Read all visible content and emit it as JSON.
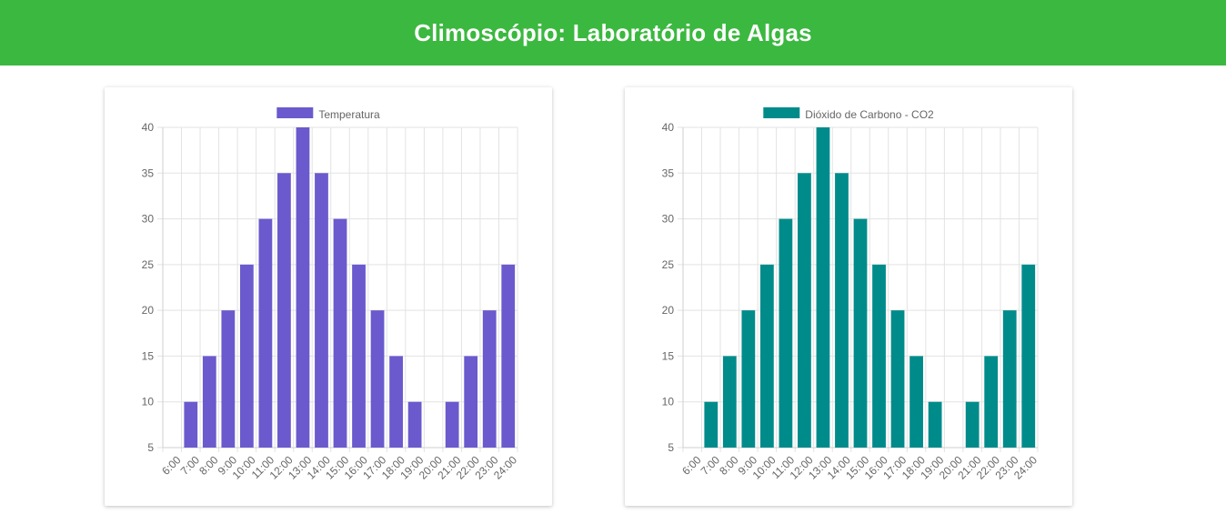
{
  "header": {
    "title": "Climoscópio: Laboratório de Algas",
    "color": "#3bb83f"
  },
  "chart_data": [
    {
      "type": "bar",
      "categories": [
        "6:00",
        "7:00",
        "8:00",
        "9:00",
        "10:00",
        "11:00",
        "12:00",
        "13:00",
        "14:00",
        "15:00",
        "16:00",
        "17:00",
        "18:00",
        "19:00",
        "20:00",
        "21:00",
        "22:00",
        "23:00",
        "24:00"
      ],
      "series": [
        {
          "name": "Temperatura",
          "color": "#6a5acd",
          "values": [
            null,
            10,
            15,
            20,
            25,
            30,
            35,
            40,
            35,
            30,
            25,
            20,
            15,
            10,
            null,
            10,
            15,
            20,
            25
          ]
        }
      ],
      "ylim": [
        5,
        40
      ],
      "yticks": [
        5,
        10,
        15,
        20,
        25,
        30,
        35,
        40
      ],
      "grid": true,
      "legend": "top-center"
    },
    {
      "type": "bar",
      "categories": [
        "6:00",
        "7:00",
        "8:00",
        "9:00",
        "10:00",
        "11:00",
        "12:00",
        "13:00",
        "14:00",
        "15:00",
        "16:00",
        "17:00",
        "18:00",
        "19:00",
        "20:00",
        "21:00",
        "22:00",
        "23:00",
        "24:00"
      ],
      "series": [
        {
          "name": "Dióxido de Carbono - CO2",
          "color": "#008b8b",
          "values": [
            null,
            10,
            15,
            20,
            25,
            30,
            35,
            40,
            35,
            30,
            25,
            20,
            15,
            10,
            null,
            10,
            15,
            20,
            25
          ]
        }
      ],
      "ylim": [
        5,
        40
      ],
      "yticks": [
        5,
        10,
        15,
        20,
        25,
        30,
        35,
        40
      ],
      "grid": true,
      "legend": "top-center"
    }
  ]
}
